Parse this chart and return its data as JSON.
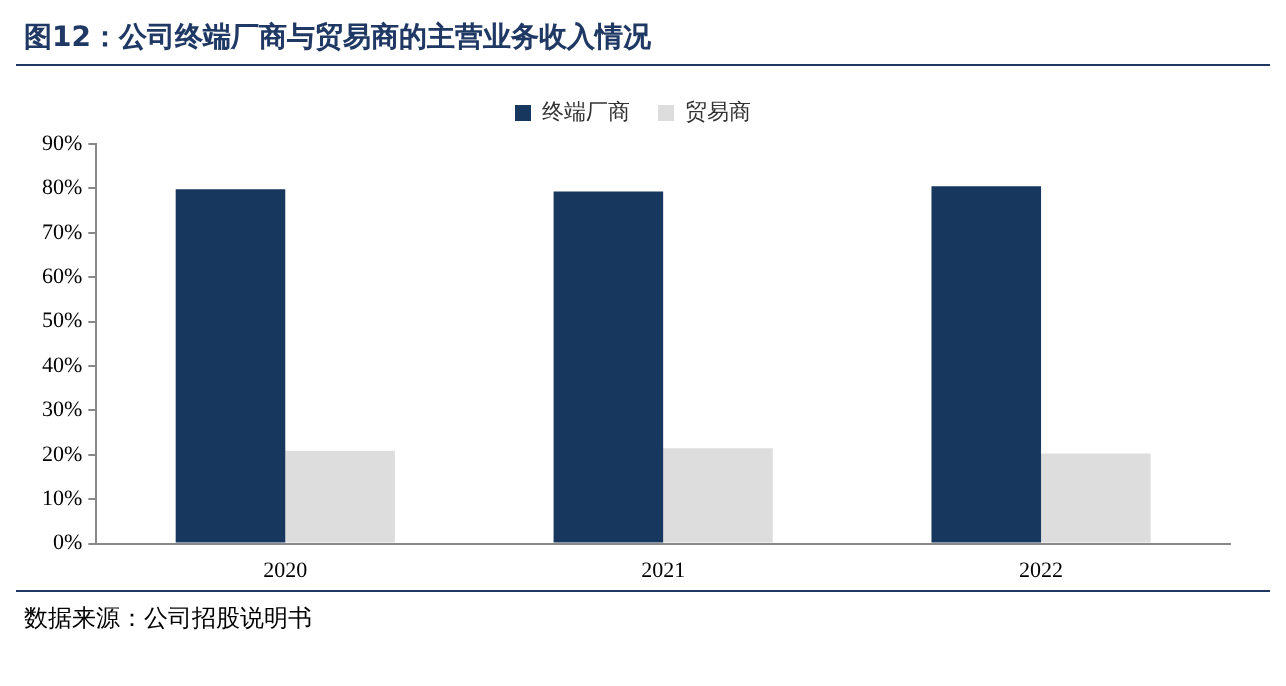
{
  "chart_data": {
    "type": "bar",
    "title": "图12：公司终端厂商与贸易商的主营业务收入情况",
    "categories": [
      "2020",
      "2021",
      "2022"
    ],
    "series": [
      {
        "name": "终端厂商",
        "color": "#17375e",
        "values": [
          79.8,
          79.3,
          80.5
        ]
      },
      {
        "name": "贸易商",
        "color": "#dddddd",
        "values": [
          20.9,
          21.5,
          20.3
        ]
      }
    ],
    "ylim": [
      0,
      90
    ],
    "yticks": [
      {
        "value": 0,
        "label": "0%"
      },
      {
        "value": 10,
        "label": "10%"
      },
      {
        "value": 20,
        "label": "20%"
      },
      {
        "value": 30,
        "label": "30%"
      },
      {
        "value": 40,
        "label": "40%"
      },
      {
        "value": 50,
        "label": "50%"
      },
      {
        "value": 60,
        "label": "60%"
      },
      {
        "value": 70,
        "label": "70%"
      },
      {
        "value": 80,
        "label": "80%"
      },
      {
        "value": 90,
        "label": "90%"
      }
    ],
    "grid": false,
    "legend": "top",
    "annotations": [
      "数据来源：公司招股说明书"
    ]
  }
}
